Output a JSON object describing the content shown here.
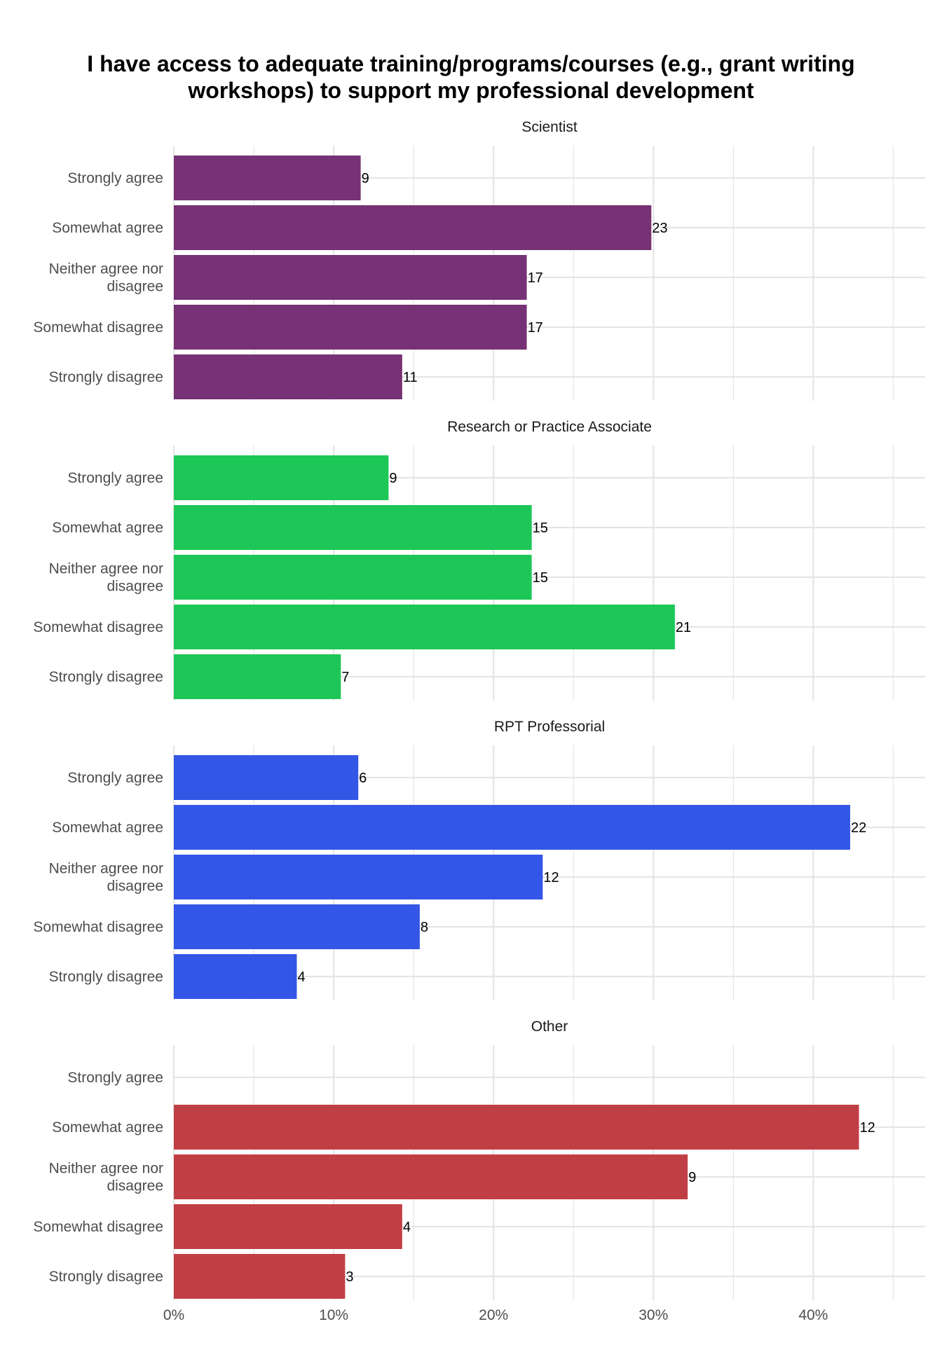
{
  "chart_data": {
    "type": "bar",
    "orientation": "horizontal",
    "title": "I have access to adequate training/programs/courses (e.g., grant writing workshops) to support my professional development",
    "title_lines": [
      "I have access to adequate training/programs/courses (e.g., grant writing",
      "workshops) to support my professional development"
    ],
    "categories": [
      "Strongly agree",
      "Somewhat agree",
      "Neither agree nor disagree",
      "Somewhat disagree",
      "Strongly disagree"
    ],
    "category_lines": [
      [
        "Strongly agree"
      ],
      [
        "Somewhat agree"
      ],
      [
        "Neither agree nor",
        "disagree"
      ],
      [
        "Somewhat disagree"
      ],
      [
        "Strongly disagree"
      ]
    ],
    "x_ticks": [
      "0%",
      "10%",
      "20%",
      "30%",
      "40%"
    ],
    "xlim": [
      0,
      0.47
    ],
    "grid": true,
    "value_format": "percent of facet total; data labels show counts",
    "facets": [
      {
        "name": "Scientist",
        "color": "#763274",
        "counts": [
          9,
          23,
          17,
          17,
          11
        ]
      },
      {
        "name": "Research or Practice Associate",
        "color": "#1dc757",
        "counts": [
          9,
          15,
          15,
          21,
          7
        ]
      },
      {
        "name": "RPT Professorial",
        "color": "#3456e6",
        "counts": [
          6,
          22,
          12,
          8,
          4
        ]
      },
      {
        "name": "Other",
        "color": "#c03f45",
        "counts": [
          0,
          12,
          9,
          4,
          3
        ]
      }
    ]
  }
}
